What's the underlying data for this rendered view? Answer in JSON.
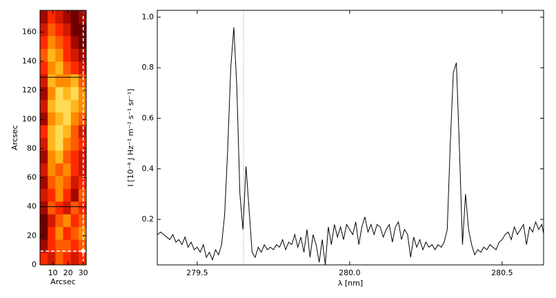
{
  "chart_data": [
    {
      "type": "heatmap",
      "xlabel": "Arcsec",
      "ylabel": "Arcsec",
      "xlim": [
        1.5,
        32
      ],
      "ylim": [
        0,
        175
      ],
      "xticks": [
        10,
        20,
        30
      ],
      "yticks": [
        0,
        20,
        40,
        60,
        80,
        100,
        120,
        140,
        160
      ],
      "colors": [
        "#000000",
        "#8b0000",
        "#ff2a00",
        "#ffa500",
        "#ffff90"
      ],
      "z": [
        [
          0.5,
          0.4,
          0.6,
          0.5,
          0.4,
          0.5
        ],
        [
          0.3,
          0.5,
          0.6,
          0.6,
          0.5,
          0.6
        ],
        [
          0.2,
          0.5,
          0.7,
          0.5,
          0.6,
          0.7
        ],
        [
          0.2,
          0.4,
          0.6,
          0.7,
          0.5,
          0.6
        ],
        [
          0.3,
          0.6,
          0.5,
          0.4,
          0.6,
          0.5
        ],
        [
          0.4,
          0.5,
          0.7,
          0.5,
          0.3,
          0.6
        ],
        [
          0.3,
          0.6,
          0.7,
          0.6,
          0.4,
          0.5
        ],
        [
          0.4,
          0.7,
          0.6,
          0.7,
          0.5,
          0.4
        ],
        [
          0.3,
          0.7,
          0.8,
          0.6,
          0.5,
          0.4
        ],
        [
          0.4,
          0.8,
          0.9,
          0.7,
          0.6,
          0.5
        ],
        [
          0.5,
          0.8,
          0.9,
          0.8,
          0.6,
          0.4
        ],
        [
          0.3,
          0.7,
          0.8,
          0.9,
          0.7,
          0.6
        ],
        [
          0.4,
          0.8,
          0.9,
          0.9,
          0.8,
          0.7
        ],
        [
          0.3,
          0.7,
          0.9,
          0.8,
          0.9,
          0.7
        ],
        [
          0.4,
          0.8,
          0.7,
          0.7,
          0.8,
          0.6
        ],
        [
          0.5,
          0.7,
          0.8,
          0.6,
          0.5,
          0.4
        ],
        [
          0.6,
          0.8,
          0.7,
          0.5,
          0.4,
          0.3
        ],
        [
          0.5,
          0.7,
          0.6,
          0.5,
          0.3,
          0.2
        ],
        [
          0.4,
          0.6,
          0.5,
          0.4,
          0.2,
          0.2
        ],
        [
          0.3,
          0.5,
          0.4,
          0.3,
          0.2,
          0.3
        ]
      ],
      "hlines": [
        129,
        40
      ],
      "dashed_vline": 30,
      "dashed_hline": 9.5
    },
    {
      "type": "line",
      "xlabel": "λ [nm]",
      "ylabel": "I [10⁻⁸ J Hz⁻¹ m⁻² s⁻¹ sr⁻¹]",
      "xlim": [
        279.369,
        280.636
      ],
      "ylim": [
        0.02,
        1.027
      ],
      "xticks": [
        279.5,
        {
          "value": 280,
          "label": "280.0"
        },
        280.5
      ],
      "yticks": [
        0.2,
        0.4,
        0.6,
        0.8,
        {
          "value": 1,
          "label": "1.0"
        }
      ],
      "dotted_vline": 279.652,
      "color": "#000000",
      "x": [
        279.37,
        279.38,
        279.39,
        279.4,
        279.41,
        279.42,
        279.43,
        279.44,
        279.45,
        279.46,
        279.47,
        279.48,
        279.49,
        279.5,
        279.51,
        279.52,
        279.53,
        279.54,
        279.55,
        279.56,
        279.57,
        279.58,
        279.59,
        279.6,
        279.61,
        279.62,
        279.63,
        279.64,
        279.65,
        279.66,
        279.67,
        279.68,
        279.69,
        279.7,
        279.71,
        279.72,
        279.73,
        279.74,
        279.75,
        279.76,
        279.77,
        279.78,
        279.79,
        279.8,
        279.81,
        279.82,
        279.83,
        279.84,
        279.85,
        279.86,
        279.87,
        279.88,
        279.89,
        279.9,
        279.91,
        279.92,
        279.93,
        279.94,
        279.95,
        279.96,
        279.97,
        279.98,
        279.99,
        280.0,
        280.01,
        280.02,
        280.03,
        280.04,
        280.05,
        280.06,
        280.07,
        280.08,
        280.09,
        280.1,
        280.11,
        280.12,
        280.13,
        280.14,
        280.15,
        280.16,
        280.17,
        280.18,
        280.19,
        280.2,
        280.21,
        280.22,
        280.23,
        280.24,
        280.25,
        280.26,
        280.27,
        280.28,
        280.29,
        280.3,
        280.31,
        280.32,
        280.33,
        280.34,
        280.35,
        280.36,
        280.37,
        280.38,
        280.39,
        280.4,
        280.41,
        280.42,
        280.43,
        280.44,
        280.45,
        280.46,
        280.47,
        280.48,
        280.49,
        280.5,
        280.51,
        280.52,
        280.53,
        280.54,
        280.55,
        280.56,
        280.57,
        280.58,
        280.59,
        280.6,
        280.61,
        280.62,
        280.63,
        280.64
      ],
      "values": [
        0.14,
        0.15,
        0.14,
        0.13,
        0.12,
        0.14,
        0.11,
        0.12,
        0.1,
        0.13,
        0.09,
        0.11,
        0.08,
        0.09,
        0.07,
        0.1,
        0.05,
        0.07,
        0.04,
        0.08,
        0.06,
        0.1,
        0.22,
        0.48,
        0.8,
        0.96,
        0.72,
        0.3,
        0.16,
        0.41,
        0.24,
        0.07,
        0.05,
        0.09,
        0.07,
        0.1,
        0.08,
        0.09,
        0.08,
        0.1,
        0.09,
        0.12,
        0.08,
        0.11,
        0.1,
        0.14,
        0.09,
        0.13,
        0.07,
        0.16,
        0.05,
        0.14,
        0.1,
        0.03,
        0.12,
        0.02,
        0.17,
        0.1,
        0.18,
        0.13,
        0.17,
        0.12,
        0.18,
        0.16,
        0.14,
        0.19,
        0.1,
        0.17,
        0.21,
        0.15,
        0.18,
        0.14,
        0.18,
        0.17,
        0.13,
        0.16,
        0.18,
        0.11,
        0.17,
        0.19,
        0.12,
        0.16,
        0.14,
        0.05,
        0.13,
        0.09,
        0.12,
        0.08,
        0.11,
        0.09,
        0.1,
        0.08,
        0.1,
        0.09,
        0.11,
        0.16,
        0.5,
        0.78,
        0.82,
        0.48,
        0.1,
        0.3,
        0.16,
        0.1,
        0.06,
        0.08,
        0.07,
        0.09,
        0.08,
        0.1,
        0.09,
        0.08,
        0.11,
        0.12,
        0.14,
        0.15,
        0.12,
        0.17,
        0.14,
        0.16,
        0.18,
        0.1,
        0.17,
        0.15,
        0.19,
        0.16,
        0.18,
        0.12
      ]
    }
  ]
}
